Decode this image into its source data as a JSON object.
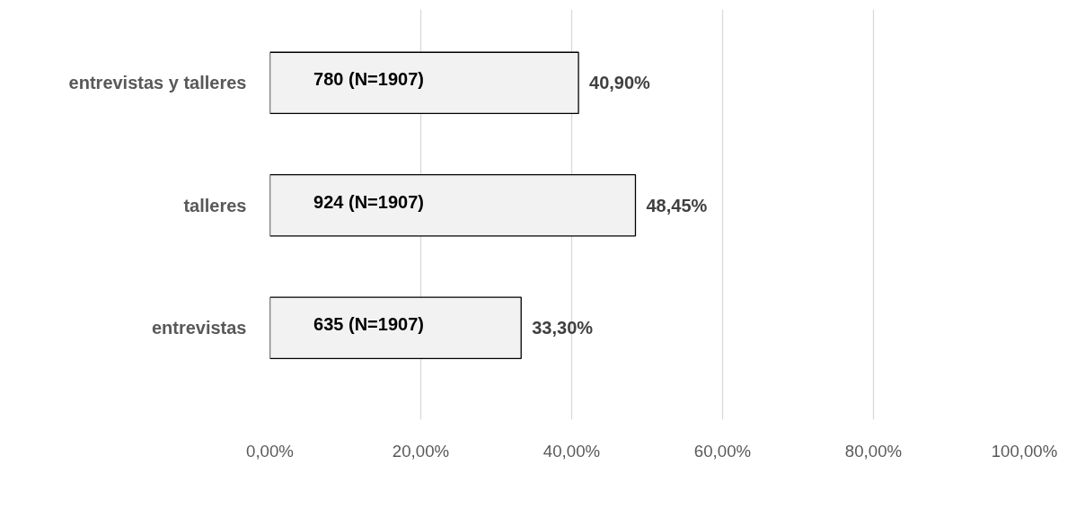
{
  "chart_data": {
    "type": "bar",
    "orientation": "horizontal",
    "categories": [
      "entrevistas y talleres",
      "talleres",
      "entrevistas"
    ],
    "values": [
      40.9,
      48.45,
      33.3
    ],
    "value_labels": [
      "40,90%",
      "48,45%",
      "33,30%"
    ],
    "color": "#f2f2f2",
    "xlim": [
      0,
      100
    ],
    "xticks": [
      {
        "value": 0,
        "label": "0,00%"
      },
      {
        "value": 20,
        "label": "20,00%"
      },
      {
        "value": 40,
        "label": "40,00%"
      },
      {
        "value": 60,
        "label": "60,00%"
      },
      {
        "value": 80,
        "label": "80,00%"
      },
      {
        "value": 100,
        "label": "100,00%"
      }
    ],
    "grid": "x",
    "annotations": [
      "780 (N=1907)",
      "924 (N=1907)",
      "635 (N=1907)"
    ]
  }
}
